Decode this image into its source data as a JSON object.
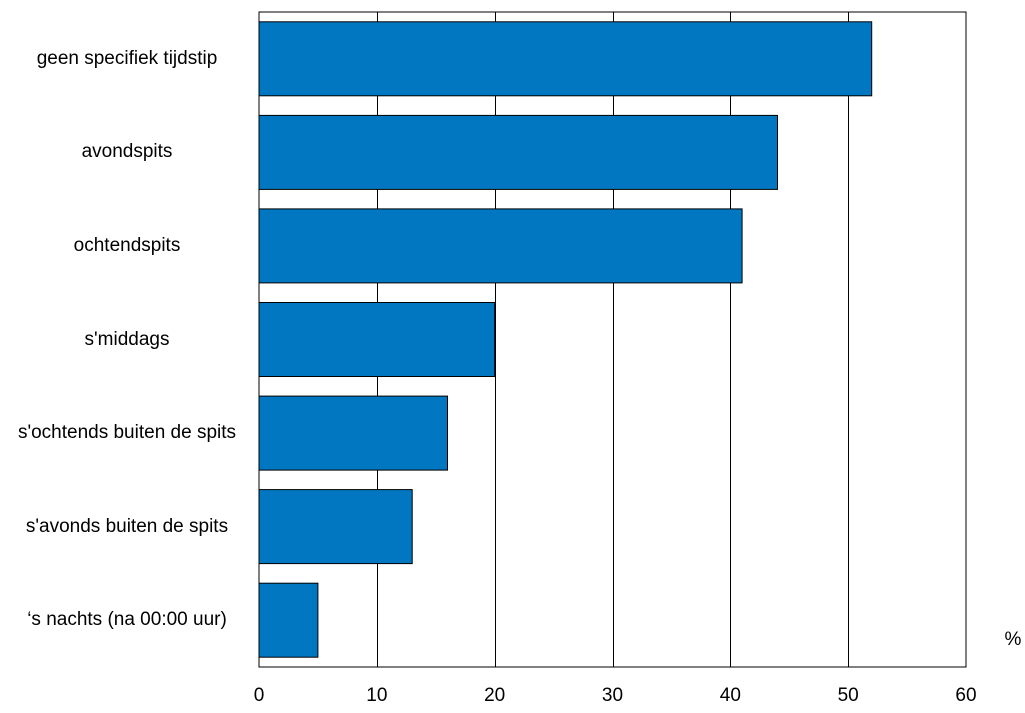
{
  "chart_data": {
    "type": "bar",
    "orientation": "horizontal",
    "categories": [
      "geen specifiek tijdstip",
      "avondspits",
      "ochtendspits",
      "s'middags",
      "s'ochtends buiten de spits",
      "s'avonds buiten de spits",
      "‘s nachts (na 00:00 uur)"
    ],
    "values": [
      52,
      44,
      41,
      20,
      16,
      13,
      5
    ],
    "xlim": [
      0,
      60
    ],
    "xticks": [
      0,
      10,
      20,
      30,
      40,
      50,
      60
    ],
    "unit_label": "%",
    "grid": "vertical",
    "legend": "none",
    "colors": {
      "bar": "#0077C0",
      "bar_edge": "#000000",
      "grid": "#000000",
      "frame": "#000000"
    }
  }
}
